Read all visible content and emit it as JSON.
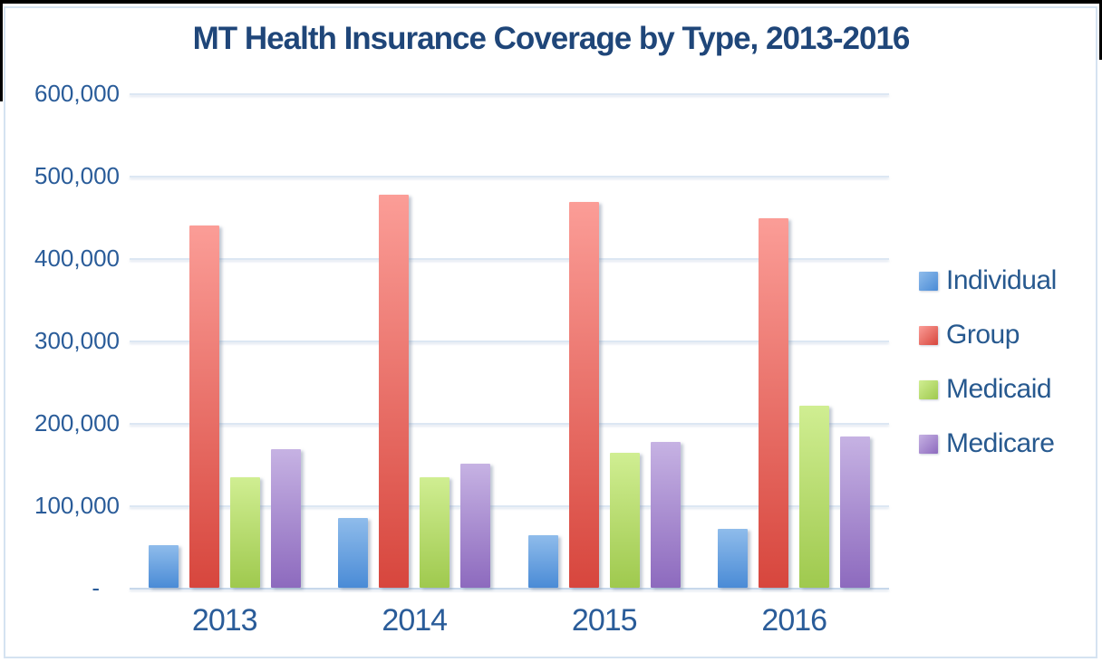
{
  "chart_data": {
    "type": "bar",
    "title": "MT Health Insurance Coverage by Type, 2013-2016",
    "categories": [
      "2013",
      "2014",
      "2015",
      "2016"
    ],
    "series": [
      {
        "name": "Individual",
        "color_top": "#8FBCEB",
        "color_bottom": "#4A8BD6",
        "values": [
          52000,
          85000,
          64000,
          71000
        ]
      },
      {
        "name": "Group",
        "color_top": "#FB9D97",
        "color_bottom": "#D7463D",
        "values": [
          440000,
          477000,
          468000,
          448000
        ]
      },
      {
        "name": "Medicaid",
        "color_top": "#D0EE92",
        "color_bottom": "#9FC94E",
        "values": [
          134000,
          134000,
          164000,
          221000
        ]
      },
      {
        "name": "Medicare",
        "color_top": "#C6B2E3",
        "color_bottom": "#8D6ABE",
        "values": [
          168000,
          151000,
          177000,
          183000
        ]
      }
    ],
    "xlabel": "",
    "ylabel": "",
    "ylim": [
      0,
      600000
    ],
    "ytick_interval": 100000,
    "ytick_labels": [
      "600,000",
      "500,000",
      "400,000",
      "300,000",
      "200,000",
      "100,000",
      "-"
    ],
    "grid": true,
    "legend_position": "right"
  },
  "colors": {
    "title_text": "#1F4679",
    "label_text": "#2A5C99",
    "gridline": "#DCE7F3",
    "axis_line": "#C7D8EB",
    "frame_border": "#D5E3F1",
    "top_edge": "#000000",
    "background": "#FFFFFF"
  }
}
